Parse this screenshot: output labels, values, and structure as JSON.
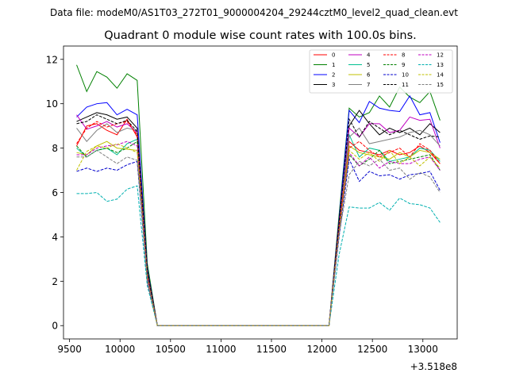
{
  "suptitle": "Data file: modeM0/AS1T03_272T01_9000004204_29244cztM0_level2_quad_clean.evt",
  "chart_data": {
    "type": "line",
    "title": "Quadrant 0 module wise count rates with 100.0s bins.",
    "xlabel": "",
    "ylabel": "",
    "x_offset_label": "+3.518e8",
    "xlim": [
      9440,
      13340
    ],
    "ylim": [
      -0.6,
      12.6
    ],
    "xticks": [
      9500,
      10000,
      10500,
      11000,
      11500,
      12000,
      12500,
      13000
    ],
    "xtick_labels": [
      "9500",
      "10000",
      "10500",
      "11000",
      "11500",
      "12000",
      "12500",
      "13000"
    ],
    "yticks": [
      0,
      2,
      4,
      6,
      8,
      10,
      12
    ],
    "ytick_labels": [
      "0",
      "2",
      "4",
      "6",
      "8",
      "10",
      "12"
    ],
    "grid": false,
    "legend": {
      "placement": "top-right",
      "columns": 4
    },
    "x": [
      9570,
      9670,
      9770,
      9870,
      9970,
      10070,
      10170,
      10270,
      10370,
      10470,
      10570,
      10670,
      10770,
      10870,
      10970,
      11070,
      11170,
      11270,
      11370,
      11470,
      11570,
      11670,
      11770,
      11870,
      11970,
      12070,
      12170,
      12270,
      12370,
      12470,
      12570,
      12670,
      12770,
      12870,
      12970,
      13070,
      13170
    ],
    "series": [
      {
        "name": "0",
        "color": "#ff0000",
        "dash": false,
        "values": [
          8.1,
          9.0,
          9.1,
          8.8,
          8.6,
          9.3,
          8.5,
          2.0,
          0,
          0,
          0,
          0,
          0,
          0,
          0,
          0,
          0,
          0,
          0,
          0,
          0,
          0,
          0,
          0,
          0,
          0,
          4.5,
          8.3,
          7.9,
          7.8,
          7.7,
          7.9,
          7.7,
          7.8,
          8.1,
          7.8,
          7.3
        ]
      },
      {
        "name": "1",
        "color": "#008000",
        "dash": false,
        "values": [
          11.75,
          10.55,
          11.45,
          11.2,
          10.7,
          11.35,
          11.05,
          2.8,
          0,
          0,
          0,
          0,
          0,
          0,
          0,
          0,
          0,
          0,
          0,
          0,
          0,
          0,
          0,
          0,
          0,
          0,
          5.0,
          9.8,
          9.4,
          9.6,
          10.35,
          9.85,
          10.75,
          10.3,
          10.05,
          10.55,
          9.25
        ]
      },
      {
        "name": "2",
        "color": "#0000ff",
        "dash": false,
        "values": [
          9.4,
          9.85,
          10.0,
          10.05,
          9.5,
          9.75,
          9.5,
          2.6,
          0,
          0,
          0,
          0,
          0,
          0,
          0,
          0,
          0,
          0,
          0,
          0,
          0,
          0,
          0,
          0,
          0,
          0,
          4.8,
          9.7,
          9.15,
          10.1,
          9.8,
          9.7,
          9.65,
          10.35,
          9.5,
          9.6,
          8.25
        ]
      },
      {
        "name": "3",
        "color": "#000000",
        "dash": false,
        "values": [
          9.2,
          9.4,
          9.6,
          9.5,
          9.3,
          9.4,
          8.9,
          2.5,
          0,
          0,
          0,
          0,
          0,
          0,
          0,
          0,
          0,
          0,
          0,
          0,
          0,
          0,
          0,
          0,
          0,
          0,
          4.7,
          9.0,
          9.7,
          9.1,
          8.6,
          8.9,
          8.7,
          8.9,
          8.6,
          9.1,
          8.7
        ]
      },
      {
        "name": "4",
        "color": "#c000c0",
        "dash": false,
        "values": [
          9.5,
          8.85,
          9.0,
          9.2,
          8.95,
          9.1,
          8.7,
          2.4,
          0,
          0,
          0,
          0,
          0,
          0,
          0,
          0,
          0,
          0,
          0,
          0,
          0,
          0,
          0,
          0,
          0,
          0,
          4.6,
          8.9,
          8.5,
          9.1,
          9.1,
          8.7,
          8.8,
          9.4,
          9.25,
          9.3,
          8.0
        ]
      },
      {
        "name": "5",
        "color": "#00c090",
        "dash": false,
        "values": [
          8.0,
          7.6,
          7.9,
          8.0,
          7.7,
          8.2,
          8.4,
          2.2,
          0,
          0,
          0,
          0,
          0,
          0,
          0,
          0,
          0,
          0,
          0,
          0,
          0,
          0,
          0,
          0,
          0,
          0,
          4.4,
          8.6,
          7.6,
          8.0,
          7.9,
          7.4,
          7.5,
          7.6,
          8.0,
          7.9,
          7.4
        ]
      },
      {
        "name": "6",
        "color": "#c0c000",
        "dash": false,
        "values": [
          7.8,
          7.7,
          8.1,
          8.3,
          8.0,
          7.95,
          7.9,
          2.2,
          0,
          0,
          0,
          0,
          0,
          0,
          0,
          0,
          0,
          0,
          0,
          0,
          0,
          0,
          0,
          0,
          0,
          0,
          4.3,
          8.1,
          7.8,
          7.7,
          7.6,
          7.5,
          7.8,
          7.6,
          7.9,
          7.8,
          7.5
        ]
      },
      {
        "name": "7",
        "color": "#808080",
        "dash": false,
        "values": [
          8.9,
          8.3,
          8.8,
          9.1,
          8.7,
          8.9,
          8.8,
          2.4,
          0,
          0,
          0,
          0,
          0,
          0,
          0,
          0,
          0,
          0,
          0,
          0,
          0,
          0,
          0,
          0,
          0,
          0,
          4.5,
          8.5,
          8.9,
          8.2,
          8.3,
          8.4,
          8.5,
          8.7,
          8.8,
          8.6,
          8.1
        ]
      },
      {
        "name": "8",
        "color": "#ff0000",
        "dash": true,
        "values": [
          8.2,
          8.9,
          9.2,
          8.95,
          9.1,
          9.2,
          8.6,
          2.3,
          0,
          0,
          0,
          0,
          0,
          0,
          0,
          0,
          0,
          0,
          0,
          0,
          0,
          0,
          0,
          0,
          0,
          0,
          4.5,
          8.0,
          8.3,
          7.9,
          7.6,
          7.8,
          8.0,
          7.6,
          8.2,
          7.9,
          7.3
        ]
      },
      {
        "name": "9",
        "color": "#008000",
        "dash": true,
        "values": [
          8.1,
          7.6,
          7.9,
          8.0,
          7.8,
          8.0,
          8.3,
          2.2,
          0,
          0,
          0,
          0,
          0,
          0,
          0,
          0,
          0,
          0,
          0,
          0,
          0,
          0,
          0,
          0,
          0,
          0,
          4.3,
          7.7,
          7.2,
          7.5,
          7.9,
          7.3,
          7.4,
          7.5,
          7.6,
          7.7,
          7.0
        ]
      },
      {
        "name": "10",
        "color": "#0000cc",
        "dash": true,
        "values": [
          6.95,
          7.1,
          6.95,
          7.1,
          7.0,
          7.25,
          7.4,
          2.0,
          0,
          0,
          0,
          0,
          0,
          0,
          0,
          0,
          0,
          0,
          0,
          0,
          0,
          0,
          0,
          0,
          0,
          0,
          4.0,
          7.5,
          6.5,
          6.95,
          6.75,
          6.8,
          6.6,
          6.8,
          6.85,
          6.95,
          6.1
        ]
      },
      {
        "name": "11",
        "color": "#000000",
        "dash": true,
        "values": [
          9.1,
          9.2,
          9.5,
          9.3,
          9.1,
          9.25,
          8.75,
          2.5,
          0,
          0,
          0,
          0,
          0,
          0,
          0,
          0,
          0,
          0,
          0,
          0,
          0,
          0,
          0,
          0,
          0,
          0,
          4.6,
          9.3,
          8.5,
          9.2,
          8.9,
          8.6,
          8.8,
          8.6,
          8.4,
          8.55,
          8.5
        ]
      },
      {
        "name": "12",
        "color": "#c000c0",
        "dash": true,
        "values": [
          7.7,
          7.7,
          8.0,
          8.1,
          8.15,
          8.3,
          8.1,
          2.2,
          0,
          0,
          0,
          0,
          0,
          0,
          0,
          0,
          0,
          0,
          0,
          0,
          0,
          0,
          0,
          0,
          0,
          0,
          4.3,
          7.8,
          7.2,
          7.6,
          7.1,
          7.4,
          7.3,
          7.3,
          7.5,
          7.6,
          7.0
        ]
      },
      {
        "name": "13",
        "color": "#00b0b0",
        "dash": true,
        "values": [
          5.95,
          5.95,
          6.0,
          5.6,
          5.7,
          6.15,
          6.3,
          1.8,
          0,
          0,
          0,
          0,
          0,
          0,
          0,
          0,
          0,
          0,
          0,
          0,
          0,
          0,
          0,
          0,
          0,
          0,
          3.2,
          5.35,
          5.3,
          5.3,
          5.55,
          5.2,
          5.75,
          5.5,
          5.45,
          5.3,
          4.65
        ]
      },
      {
        "name": "14",
        "color": "#c0c000",
        "dash": true,
        "values": [
          7.0,
          7.85,
          8.1,
          8.0,
          8.2,
          8.0,
          7.8,
          2.1,
          0,
          0,
          0,
          0,
          0,
          0,
          0,
          0,
          0,
          0,
          0,
          0,
          0,
          0,
          0,
          0,
          0,
          0,
          4.2,
          7.9,
          7.5,
          7.8,
          7.4,
          7.9,
          7.3,
          7.6,
          7.2,
          7.6,
          7.1
        ]
      },
      {
        "name": "15",
        "color": "#808080",
        "dash": true,
        "values": [
          7.6,
          7.6,
          7.9,
          7.6,
          7.3,
          7.6,
          7.45,
          2.1,
          0,
          0,
          0,
          0,
          0,
          0,
          0,
          0,
          0,
          0,
          0,
          0,
          0,
          0,
          0,
          0,
          0,
          0,
          4.1,
          6.8,
          7.4,
          7.2,
          7.5,
          7.0,
          7.1,
          6.6,
          6.9,
          6.7,
          6.0
        ]
      }
    ]
  }
}
